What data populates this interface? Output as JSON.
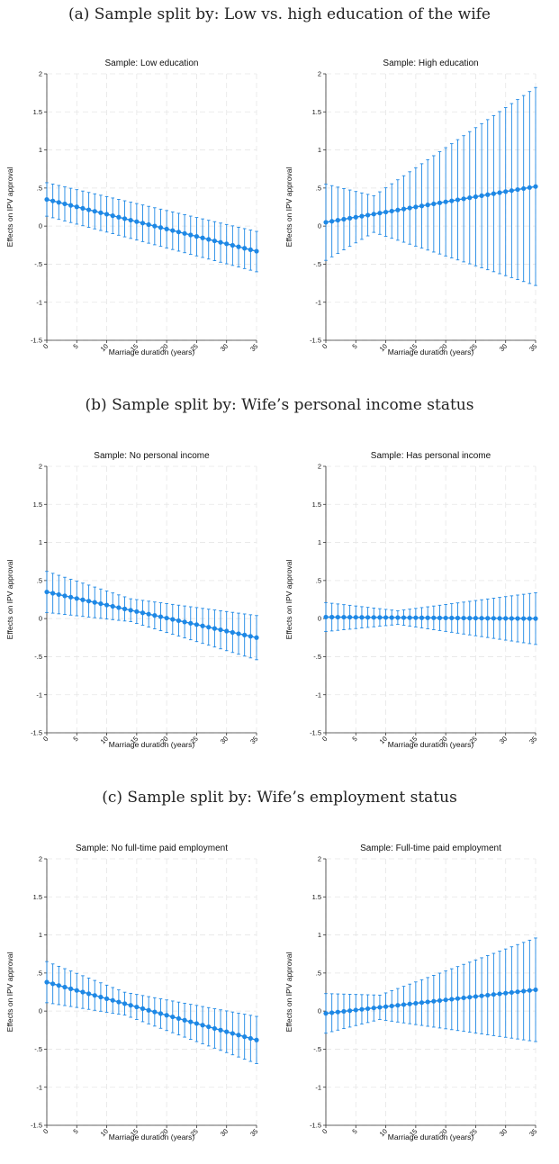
{
  "figure": {
    "caption_a": "(a) Sample split by: Low vs. high education of the wife",
    "caption_b": "(b) Sample split by: Wife’s personal income status",
    "caption_c": "(c) Sample split by: Wife’s employment status"
  },
  "colors": {
    "series": "#1e88e5",
    "grid": "#e6e6e6",
    "axis": "#333333"
  },
  "chart_data": [
    {
      "type": "scatter",
      "group": "a",
      "title": "Sample: Low education",
      "xlabel": "Marriage duration (years)",
      "ylabel": "Effects on IPV approval",
      "xlim": [
        0,
        35
      ],
      "ylim": [
        -1.5,
        2
      ],
      "xticks": [
        "0",
        "5",
        "10",
        "15",
        "20",
        "25",
        "30",
        "35"
      ],
      "yticks": [
        "-1.5",
        "-1",
        "-.5",
        "0",
        ".5",
        "1",
        "1.5",
        "2"
      ],
      "grid": true,
      "error_bars": "95% CI",
      "x_range": [
        0,
        35
      ],
      "estimate": [
        0.35,
        -0.33
      ],
      "ci_low": [
        0.13,
        -0.6
      ],
      "ci_high": [
        0.57,
        -0.07
      ],
      "ci_minwidth": 0.0
    },
    {
      "type": "scatter",
      "group": "a",
      "title": "Sample: High education",
      "xlabel": "Marriage duration (years)",
      "ylabel": "Effects on IPV approval",
      "xlim": [
        0,
        35
      ],
      "ylim": [
        -1.5,
        2
      ],
      "xticks": [
        "0",
        "5",
        "10",
        "15",
        "20",
        "25",
        "30",
        "35"
      ],
      "yticks": [
        "-1.5",
        "-1",
        "-.5",
        "0",
        ".5",
        "1",
        "1.5",
        "2"
      ],
      "grid": true,
      "error_bars": "95% CI",
      "x_range": [
        0,
        35
      ],
      "estimate": [
        0.05,
        0.52
      ],
      "halfwidth_start": 0.5,
      "halfwidth_min": 0.24,
      "halfwidth_min_at": 8,
      "halfwidth_end": 1.3
    },
    {
      "type": "scatter",
      "group": "b",
      "title": "Sample: No personal income",
      "xlabel": "Marriage duration (years)",
      "ylabel": "Effects on IPV approval",
      "xlim": [
        0,
        35
      ],
      "ylim": [
        -1.5,
        2
      ],
      "xticks": [
        "0",
        "5",
        "10",
        "15",
        "20",
        "25",
        "30",
        "35"
      ],
      "yticks": [
        "-1.5",
        "-1",
        "-.5",
        "0",
        ".5",
        "1",
        "1.5",
        "2"
      ],
      "grid": true,
      "error_bars": "95% CI",
      "x_range": [
        0,
        35
      ],
      "estimate": [
        0.35,
        -0.25
      ],
      "halfwidth_start": 0.27,
      "halfwidth_min": 0.15,
      "halfwidth_min_at": 14,
      "halfwidth_end": 0.29
    },
    {
      "type": "scatter",
      "group": "b",
      "title": "Sample: Has personal income",
      "xlabel": "Marriage duration (years)",
      "ylabel": "Effects on IPV approval",
      "xlim": [
        0,
        35
      ],
      "ylim": [
        -1.5,
        2
      ],
      "xticks": [
        "0",
        "5",
        "10",
        "15",
        "20",
        "25",
        "30",
        "35"
      ],
      "yticks": [
        "-1.5",
        "-1",
        "-.5",
        "0",
        ".5",
        "1",
        "1.5",
        "2"
      ],
      "grid": true,
      "error_bars": "95% CI",
      "x_range": [
        0,
        35
      ],
      "estimate": [
        0.02,
        0.0
      ],
      "halfwidth_start": 0.19,
      "halfwidth_min": 0.09,
      "halfwidth_min_at": 12,
      "halfwidth_end": 0.34
    },
    {
      "type": "scatter",
      "group": "c",
      "title": "Sample: No full-time paid employment",
      "xlabel": "Marriage duration (years)",
      "ylabel": "Effects on IPV approval",
      "xlim": [
        0,
        35
      ],
      "ylim": [
        -1.5,
        2
      ],
      "xticks": [
        "0",
        "5",
        "10",
        "15",
        "20",
        "25",
        "30",
        "35"
      ],
      "yticks": [
        "-1.5",
        "-1",
        "-.5",
        "0",
        ".5",
        "1",
        "1.5",
        "2"
      ],
      "grid": true,
      "error_bars": "95% CI",
      "x_range": [
        0,
        35
      ],
      "estimate": [
        0.38,
        -0.38
      ],
      "halfwidth_start": 0.27,
      "halfwidth_min": 0.15,
      "halfwidth_min_at": 13,
      "halfwidth_end": 0.31
    },
    {
      "type": "scatter",
      "group": "c",
      "title": "Sample: Full-time paid employment",
      "xlabel": "Marriage duration (years)",
      "ylabel": "Effects on IPV approval",
      "xlim": [
        0,
        35
      ],
      "ylim": [
        -1.5,
        2
      ],
      "xticks": [
        "0",
        "5",
        "10",
        "15",
        "20",
        "25",
        "30",
        "35"
      ],
      "yticks": [
        "-1.5",
        "-1",
        "-.5",
        "0",
        ".5",
        "1",
        "1.5",
        "2"
      ],
      "grid": true,
      "error_bars": "95% CI",
      "x_range": [
        0,
        35
      ],
      "estimate": [
        -0.03,
        0.28
      ],
      "halfwidth_start": 0.26,
      "halfwidth_min": 0.16,
      "halfwidth_min_at": 9,
      "halfwidth_end": 0.68
    }
  ]
}
